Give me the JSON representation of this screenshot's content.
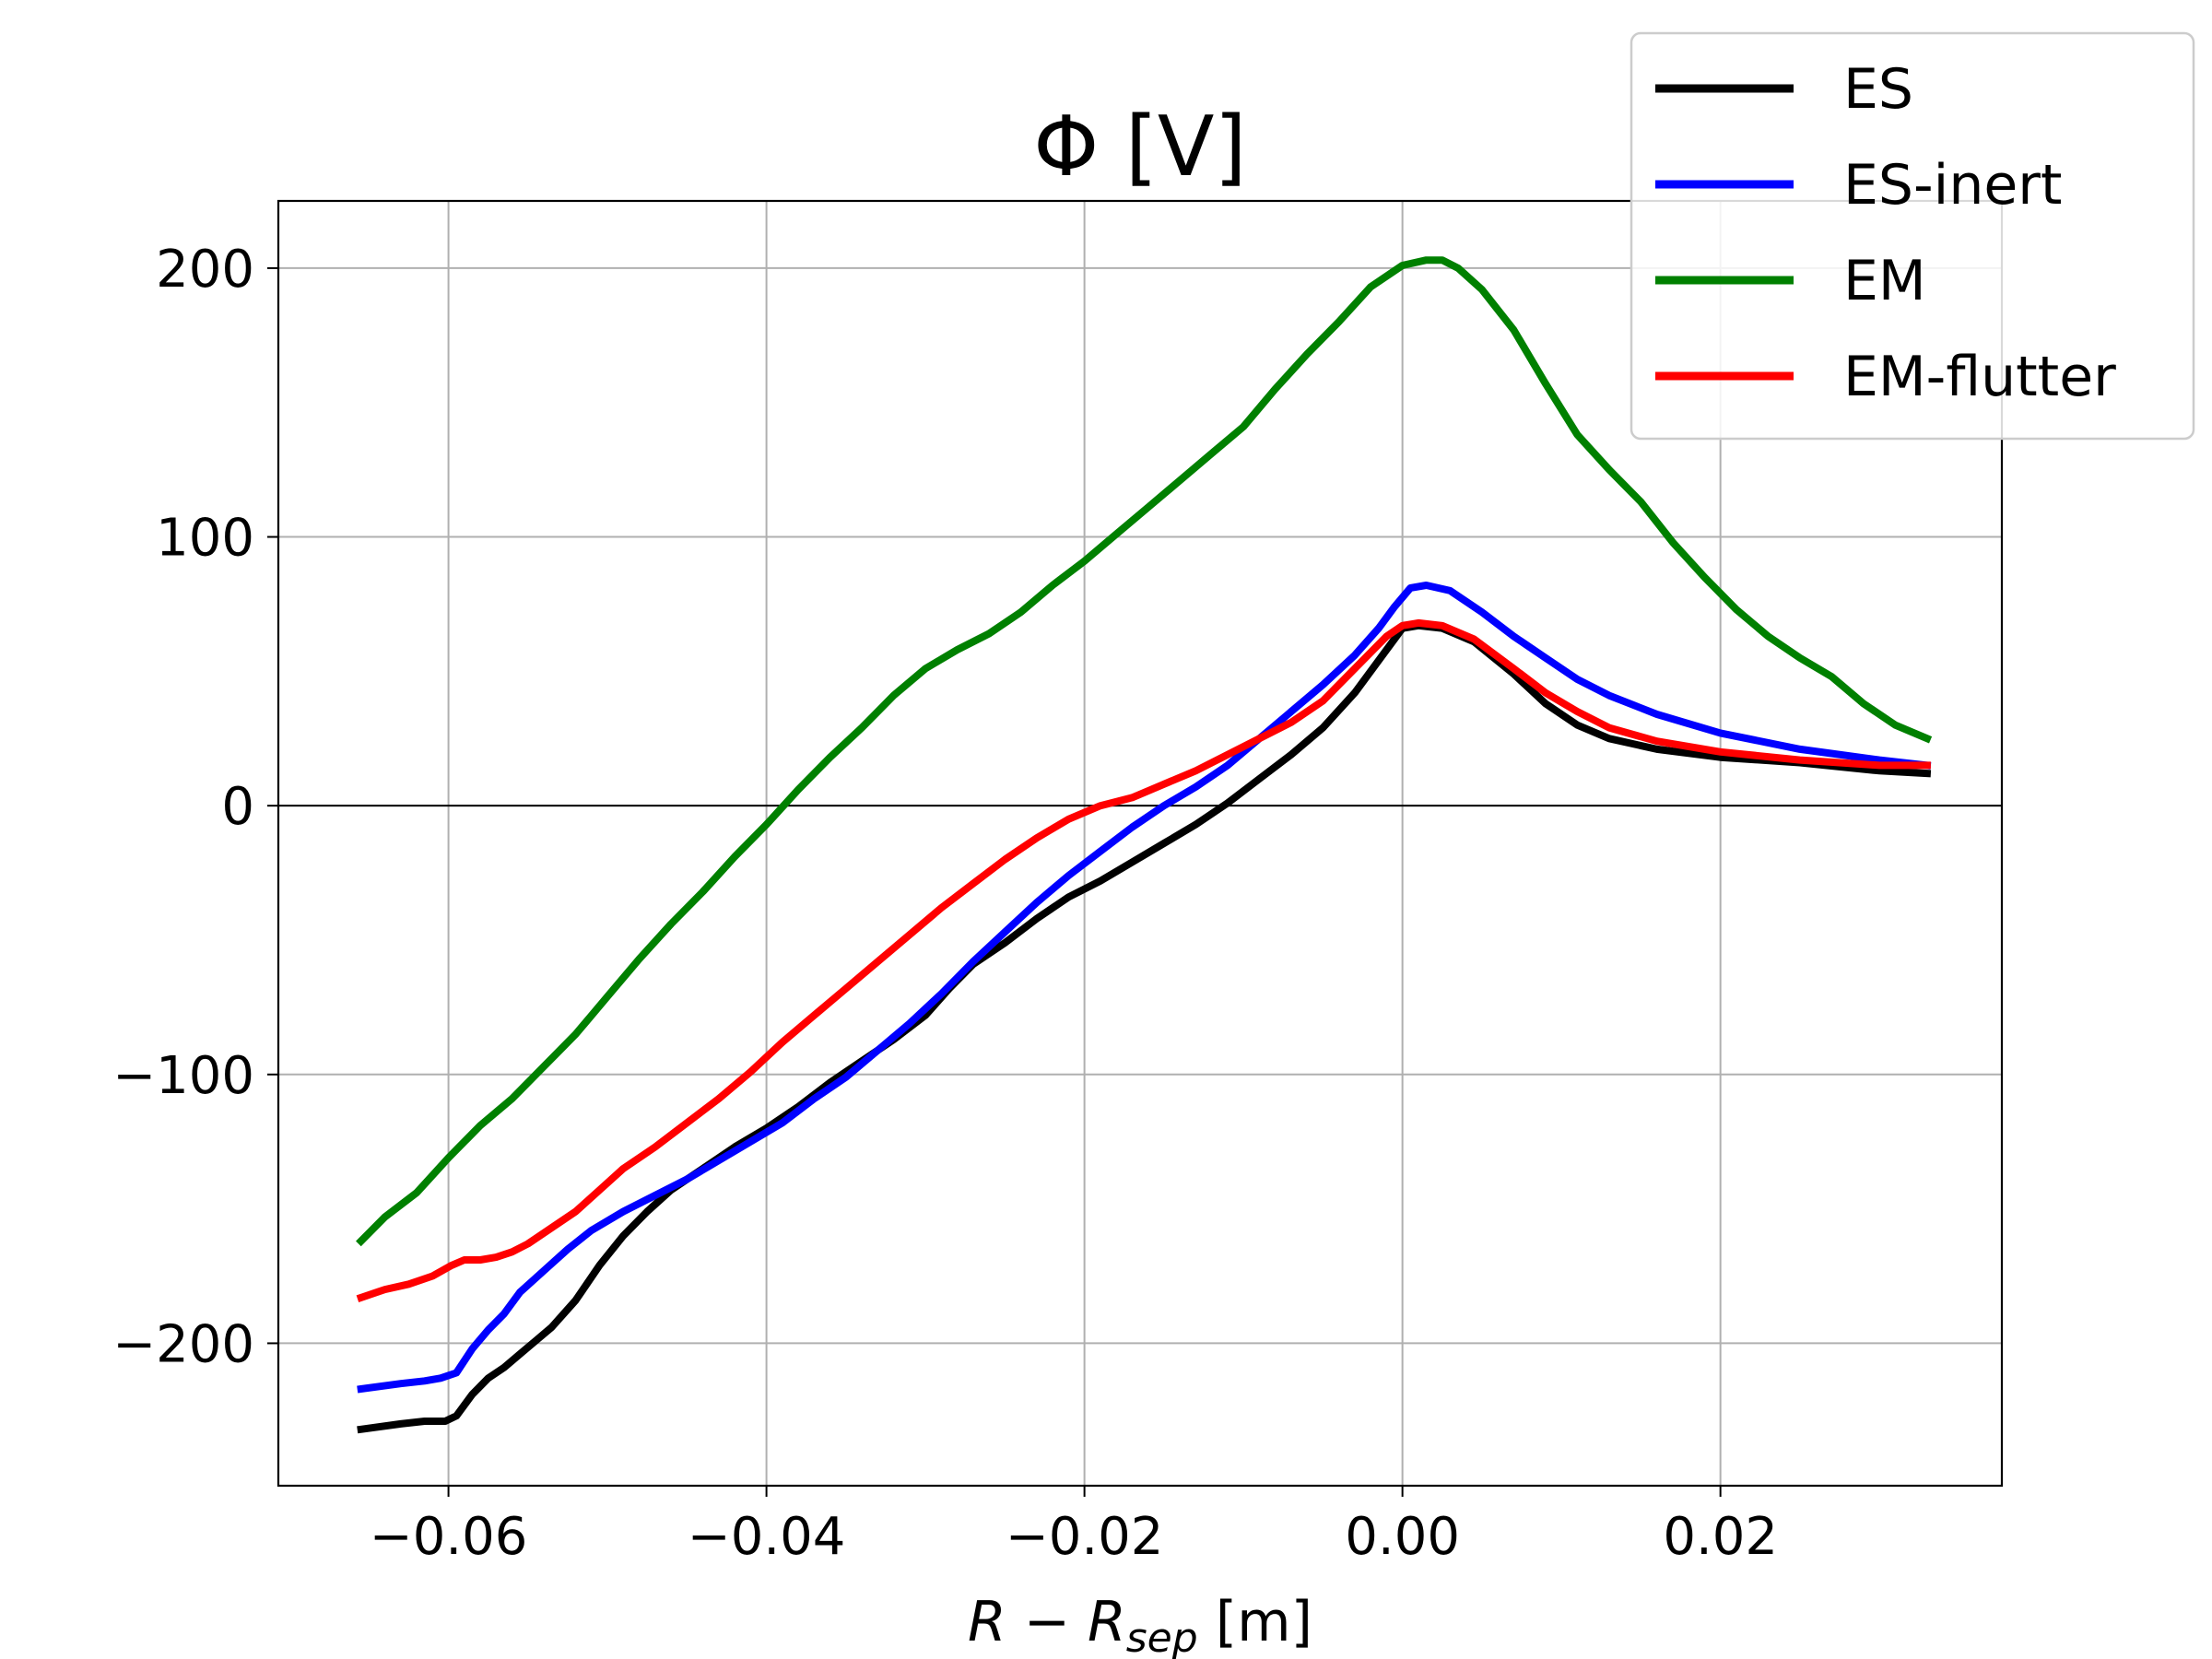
{
  "chart_data": {
    "type": "line",
    "title": "Φ [V]",
    "xlabel": {
      "base": "R − R",
      "sub": "sep",
      "unit": " [m]"
    },
    "ylabel": "",
    "xlim": [
      -0.0707,
      0.0377
    ],
    "ylim": [
      -253,
      225
    ],
    "xticks": [
      -0.06,
      -0.04,
      -0.02,
      0.0,
      0.02
    ],
    "xtick_labels": [
      "−0.06",
      "−0.04",
      "−0.02",
      "0.00",
      "0.02"
    ],
    "yticks": [
      -200,
      -100,
      0,
      100,
      200
    ],
    "ytick_labels": [
      "−200",
      "−100",
      "0",
      "100",
      "200"
    ],
    "grid": true,
    "zero_line": true,
    "legend_position": "top-right",
    "series": [
      {
        "name": "ES",
        "color": "#000000",
        "x": [
          -0.0655,
          -0.063,
          -0.0615,
          -0.0602,
          -0.0595,
          -0.0585,
          -0.0575,
          -0.0565,
          -0.0555,
          -0.0545,
          -0.0535,
          -0.052,
          -0.0505,
          -0.049,
          -0.0475,
          -0.046,
          -0.044,
          -0.042,
          -0.04,
          -0.038,
          -0.036,
          -0.034,
          -0.032,
          -0.03,
          -0.0285,
          -0.027,
          -0.025,
          -0.023,
          -0.021,
          -0.019,
          -0.017,
          -0.015,
          -0.013,
          -0.011,
          -0.009,
          -0.007,
          -0.005,
          -0.003,
          -0.001,
          0.0,
          0.001,
          0.0025,
          0.0045,
          0.007,
          0.009,
          0.011,
          0.013,
          0.016,
          0.02,
          0.025,
          0.03,
          0.033
        ],
        "y": [
          -232,
          -230,
          -229,
          -229,
          -227,
          -219,
          -213,
          -209,
          -204,
          -199,
          -194,
          -184,
          -171,
          -160,
          -151,
          -143,
          -135,
          -127,
          -120,
          -112,
          -103,
          -95,
          -87,
          -78,
          -68,
          -59,
          -51,
          -42,
          -34,
          -28,
          -21,
          -14,
          -7,
          1,
          10,
          19,
          29,
          42,
          58,
          66,
          67,
          66,
          61,
          49,
          38,
          30,
          25,
          21,
          18,
          16,
          13,
          12
        ]
      },
      {
        "name": "ES-inert",
        "color": "#0000ff",
        "x": [
          -0.0655,
          -0.063,
          -0.0615,
          -0.0605,
          -0.0595,
          -0.0585,
          -0.0575,
          -0.0565,
          -0.0555,
          -0.054,
          -0.0525,
          -0.051,
          -0.049,
          -0.047,
          -0.045,
          -0.043,
          -0.041,
          -0.039,
          -0.037,
          -0.035,
          -0.033,
          -0.031,
          -0.029,
          -0.027,
          -0.025,
          -0.023,
          -0.021,
          -0.019,
          -0.017,
          -0.015,
          -0.013,
          -0.011,
          -0.009,
          -0.007,
          -0.005,
          -0.003,
          -0.0015,
          -0.0005,
          0.0005,
          0.0015,
          0.003,
          0.005,
          0.007,
          0.009,
          0.011,
          0.013,
          0.016,
          0.02,
          0.025,
          0.03,
          0.033
        ],
        "y": [
          -217,
          -215,
          -214,
          -213,
          -211,
          -202,
          -195,
          -189,
          -181,
          -173,
          -165,
          -158,
          -151,
          -145,
          -139,
          -132,
          -125,
          -118,
          -109,
          -101,
          -91,
          -81,
          -70,
          -58,
          -47,
          -36,
          -26,
          -17,
          -8,
          0,
          7,
          15,
          25,
          35,
          45,
          56,
          66,
          74,
          81,
          82,
          80,
          72,
          63,
          55,
          47,
          41,
          34,
          27,
          21,
          17,
          15
        ]
      },
      {
        "name": "EM",
        "color": "#008000",
        "x": [
          -0.0655,
          -0.064,
          -0.062,
          -0.06,
          -0.058,
          -0.056,
          -0.054,
          -0.052,
          -0.05,
          -0.048,
          -0.046,
          -0.044,
          -0.042,
          -0.04,
          -0.038,
          -0.036,
          -0.034,
          -0.032,
          -0.03,
          -0.028,
          -0.026,
          -0.024,
          -0.022,
          -0.02,
          -0.018,
          -0.016,
          -0.014,
          -0.012,
          -0.01,
          -0.008,
          -0.006,
          -0.004,
          -0.002,
          0.0,
          0.0015,
          0.0025,
          0.0035,
          0.005,
          0.007,
          0.009,
          0.011,
          0.013,
          0.015,
          0.017,
          0.019,
          0.021,
          0.023,
          0.025,
          0.027,
          0.029,
          0.031,
          0.033
        ],
        "y": [
          -162,
          -153,
          -144,
          -131,
          -119,
          -109,
          -97,
          -85,
          -71,
          -57,
          -44,
          -32,
          -19,
          -7,
          6,
          18,
          29,
          41,
          51,
          58,
          64,
          72,
          82,
          91,
          101,
          111,
          121,
          131,
          141,
          155,
          168,
          180,
          193,
          201,
          203,
          203,
          200,
          192,
          177,
          157,
          138,
          125,
          113,
          98,
          85,
          73,
          63,
          55,
          48,
          38,
          30,
          25
        ]
      },
      {
        "name": "EM-flutter",
        "color": "#ff0000",
        "x": [
          -0.0655,
          -0.064,
          -0.0625,
          -0.061,
          -0.0598,
          -0.059,
          -0.058,
          -0.057,
          -0.056,
          -0.055,
          -0.0535,
          -0.052,
          -0.0505,
          -0.049,
          -0.047,
          -0.045,
          -0.043,
          -0.041,
          -0.039,
          -0.037,
          -0.035,
          -0.033,
          -0.031,
          -0.029,
          -0.027,
          -0.025,
          -0.023,
          -0.021,
          -0.019,
          -0.017,
          -0.015,
          -0.013,
          -0.011,
          -0.009,
          -0.007,
          -0.005,
          -0.003,
          -0.001,
          0.0,
          0.001,
          0.0025,
          0.0045,
          0.007,
          0.009,
          0.011,
          0.013,
          0.016,
          0.02,
          0.025,
          0.03,
          0.033
        ],
        "y": [
          -183,
          -180,
          -178,
          -175,
          -171,
          -169,
          -169,
          -168,
          -166,
          -163,
          -157,
          -151,
          -143,
          -135,
          -127,
          -118,
          -109,
          -99,
          -88,
          -78,
          -68,
          -58,
          -48,
          -38,
          -29,
          -20,
          -12,
          -5,
          0,
          3,
          8,
          13,
          19,
          25,
          31,
          39,
          51,
          63,
          67,
          68,
          67,
          62,
          51,
          42,
          35,
          29,
          24,
          20,
          17,
          15,
          15
        ]
      }
    ]
  }
}
